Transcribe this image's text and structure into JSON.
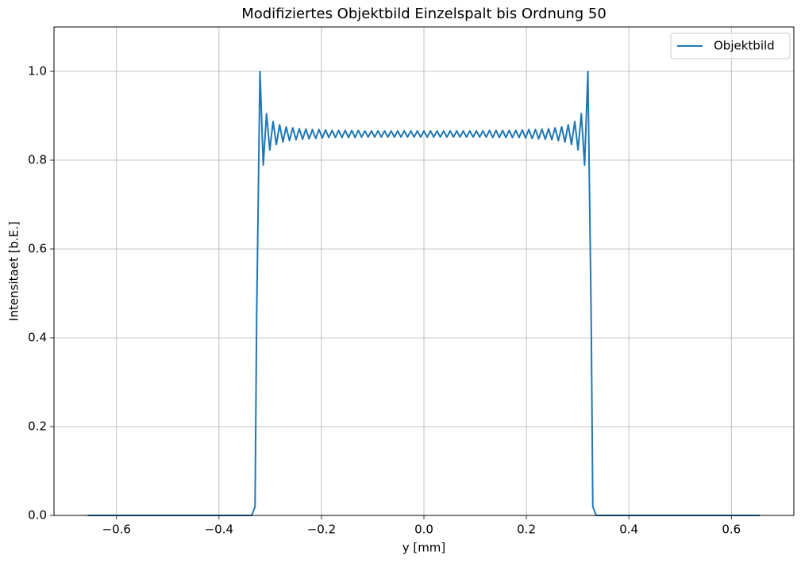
{
  "chart_data": {
    "type": "line",
    "title": "Modifiziertes Objektbild Einzelspalt bis Ordnung 50",
    "xlabel": "y [mm]",
    "ylabel": "Intensitaet [b.E.]",
    "x": [
      -0.656,
      -0.5,
      -0.4,
      -0.35,
      -0.336,
      -0.3296,
      -0.3264,
      -0.32,
      -0.3136,
      -0.3072,
      -0.3008,
      -0.2944,
      -0.288,
      -0.2816,
      -0.2752,
      -0.2688,
      -0.2624,
      -0.256,
      -0.2496,
      -0.2432,
      -0.2368,
      -0.2304,
      -0.224,
      -0.2176,
      -0.2112,
      -0.2048,
      -0.1984,
      -0.192,
      -0.1856,
      -0.1792,
      -0.1728,
      -0.1664,
      -0.16,
      -0.1536,
      -0.1472,
      -0.1408,
      -0.1344,
      -0.128,
      -0.1216,
      -0.1152,
      -0.1088,
      -0.1024,
      -0.096,
      -0.0896,
      -0.0832,
      -0.0768,
      -0.0704,
      -0.064,
      -0.0576,
      -0.0512,
      -0.0448,
      -0.0384,
      -0.032,
      -0.0256,
      -0.0192,
      -0.0128,
      -0.0064,
      0,
      0.0064,
      0.0128,
      0.0192,
      0.0256,
      0.032,
      0.0384,
      0.0448,
      0.0512,
      0.0576,
      0.064,
      0.0704,
      0.0768,
      0.0832,
      0.0896,
      0.096,
      0.1024,
      0.1088,
      0.1152,
      0.1216,
      0.128,
      0.1344,
      0.1408,
      0.1472,
      0.1536,
      0.16,
      0.1664,
      0.1728,
      0.1792,
      0.1856,
      0.192,
      0.1984,
      0.2048,
      0.2112,
      0.2176,
      0.224,
      0.2304,
      0.2368,
      0.2432,
      0.2496,
      0.256,
      0.2624,
      0.2688,
      0.2752,
      0.2816,
      0.288,
      0.2944,
      0.3008,
      0.3072,
      0.3136,
      0.32,
      0.3264,
      0.3296,
      0.336,
      0.35,
      0.4,
      0.5,
      0.656
    ],
    "series": [
      {
        "name": "Objektbild",
        "color": "#1f77b4",
        "values": [
          0,
          0,
          0,
          0,
          0,
          0.02,
          0.45,
          1.0,
          0.789,
          0.905,
          0.823,
          0.887,
          0.835,
          0.88,
          0.841,
          0.875,
          0.844,
          0.873,
          0.846,
          0.871,
          0.847,
          0.87,
          0.848,
          0.869,
          0.849,
          0.869,
          0.85,
          0.868,
          0.851,
          0.867,
          0.851,
          0.867,
          0.851,
          0.867,
          0.851,
          0.867,
          0.851,
          0.867,
          0.852,
          0.866,
          0.852,
          0.866,
          0.852,
          0.866,
          0.852,
          0.866,
          0.852,
          0.866,
          0.852,
          0.866,
          0.852,
          0.866,
          0.852,
          0.866,
          0.852,
          0.866,
          0.852,
          0.866,
          0.852,
          0.866,
          0.852,
          0.866,
          0.852,
          0.866,
          0.852,
          0.866,
          0.852,
          0.866,
          0.852,
          0.866,
          0.852,
          0.866,
          0.852,
          0.866,
          0.852,
          0.866,
          0.852,
          0.867,
          0.851,
          0.867,
          0.851,
          0.867,
          0.851,
          0.867,
          0.851,
          0.867,
          0.851,
          0.868,
          0.85,
          0.869,
          0.849,
          0.869,
          0.848,
          0.87,
          0.847,
          0.871,
          0.846,
          0.873,
          0.844,
          0.875,
          0.841,
          0.88,
          0.835,
          0.887,
          0.823,
          0.905,
          0.789,
          1.0,
          0.45,
          0.02,
          0,
          0,
          0,
          0,
          0
        ]
      }
    ],
    "xlim": [
      -0.722,
      0.722
    ],
    "ylim": [
      0,
      1.1
    ],
    "xticks": [
      {
        "value": -0.6,
        "label": "−0.6"
      },
      {
        "value": -0.4,
        "label": "−0.4"
      },
      {
        "value": -0.2,
        "label": "−0.2"
      },
      {
        "value": 0,
        "label": "0.0"
      },
      0.2,
      0.4,
      0.6
    ],
    "yticks": [
      {
        "value": 0,
        "label": "0.0"
      },
      0.2,
      0.4,
      0.6,
      0.8,
      {
        "value": 1,
        "label": "1.0"
      }
    ],
    "grid": true,
    "legend": "upper right"
  }
}
